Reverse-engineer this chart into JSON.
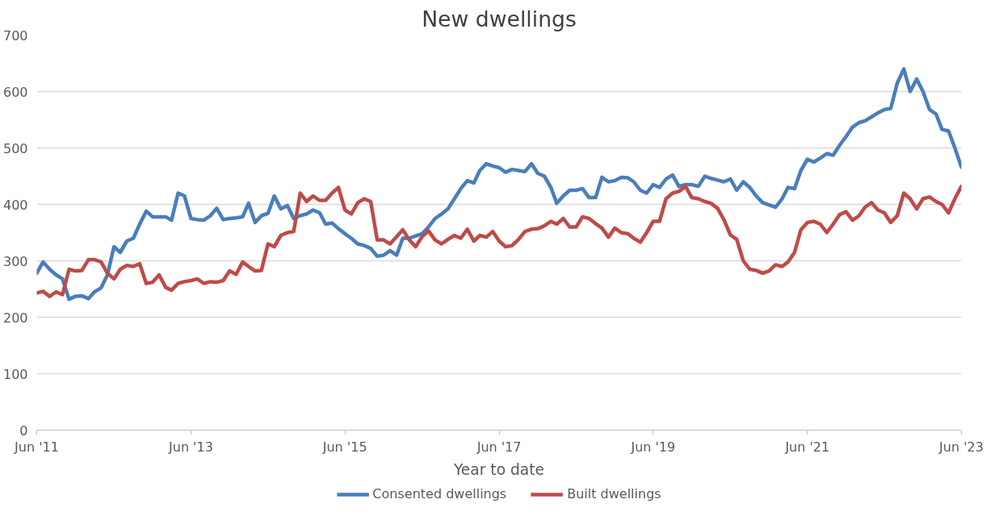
{
  "chart_data": {
    "type": "line",
    "title": "New dwellings",
    "xlabel": "Year to date",
    "xlim": [
      "2011-06",
      "2023-06"
    ],
    "xticks": [
      {
        "value": "2011-06",
        "label": "Jun '11"
      },
      {
        "value": "2013-06",
        "label": "Jun '13"
      },
      {
        "value": "2015-06",
        "label": "Jun '15"
      },
      {
        "value": "2017-06",
        "label": "Jun '17"
      },
      {
        "value": "2019-06",
        "label": "Jun '19"
      },
      {
        "value": "2021-06",
        "label": "Jun '21"
      },
      {
        "value": "2023-06",
        "label": "Jun '23"
      }
    ],
    "ylim": [
      0,
      700
    ],
    "yticks": [
      0,
      100,
      200,
      300,
      400,
      500,
      600,
      700
    ],
    "grid": "y",
    "legend": "bottom",
    "line_style": "solid",
    "x": [
      "2011-06",
      "2011-07",
      "2011-08",
      "2011-09",
      "2011-10",
      "2011-11",
      "2011-12",
      "2012-01",
      "2012-02",
      "2012-03",
      "2012-04",
      "2012-05",
      "2012-06",
      "2012-07",
      "2012-08",
      "2012-09",
      "2012-10",
      "2012-11",
      "2012-12",
      "2013-01",
      "2013-02",
      "2013-03",
      "2013-04",
      "2013-05",
      "2013-06",
      "2013-07",
      "2013-08",
      "2013-09",
      "2013-10",
      "2013-11",
      "2013-12",
      "2014-01",
      "2014-02",
      "2014-03",
      "2014-04",
      "2014-05",
      "2014-06",
      "2014-07",
      "2014-08",
      "2014-09",
      "2014-10",
      "2014-11",
      "2014-12",
      "2015-01",
      "2015-02",
      "2015-03",
      "2015-04",
      "2015-05",
      "2015-06",
      "2015-07",
      "2015-08",
      "2015-09",
      "2015-10",
      "2015-11",
      "2015-12",
      "2016-01",
      "2016-02",
      "2016-03",
      "2016-04",
      "2016-05",
      "2016-06",
      "2016-07",
      "2016-08",
      "2016-09",
      "2016-10",
      "2016-11",
      "2016-12",
      "2017-01",
      "2017-02",
      "2017-03",
      "2017-04",
      "2017-05",
      "2017-06",
      "2017-07",
      "2017-08",
      "2017-09",
      "2017-10",
      "2017-11",
      "2017-12",
      "2018-01",
      "2018-02",
      "2018-03",
      "2018-04",
      "2018-05",
      "2018-06",
      "2018-07",
      "2018-08",
      "2018-09",
      "2018-10",
      "2018-11",
      "2018-12",
      "2019-01",
      "2019-02",
      "2019-03",
      "2019-04",
      "2019-05",
      "2019-06",
      "2019-07",
      "2019-08",
      "2019-09",
      "2019-10",
      "2019-11",
      "2019-12",
      "2020-01",
      "2020-02",
      "2020-03",
      "2020-04",
      "2020-05",
      "2020-06",
      "2020-07",
      "2020-08",
      "2020-09",
      "2020-10",
      "2020-11",
      "2020-12",
      "2021-01",
      "2021-02",
      "2021-03",
      "2021-04",
      "2021-05",
      "2021-06",
      "2021-07",
      "2021-08",
      "2021-09",
      "2021-10",
      "2021-11",
      "2021-12",
      "2022-01",
      "2022-02",
      "2022-03",
      "2022-04",
      "2022-05",
      "2022-06",
      "2022-07",
      "2022-08",
      "2022-09",
      "2022-10",
      "2022-11",
      "2022-12",
      "2023-01",
      "2023-02",
      "2023-03",
      "2023-04",
      "2023-05",
      "2023-06"
    ],
    "series": [
      {
        "name": "Consented dwellings",
        "color": "#4a7ebb",
        "values": [
          278,
          298,
          285,
          275,
          268,
          232,
          237,
          238,
          233,
          245,
          252,
          275,
          325,
          315,
          335,
          340,
          365,
          388,
          378,
          378,
          378,
          372,
          420,
          415,
          375,
          373,
          372,
          380,
          393,
          373,
          375,
          376,
          378,
          402,
          368,
          380,
          384,
          415,
          392,
          398,
          375,
          380,
          383,
          390,
          385,
          365,
          367,
          357,
          348,
          340,
          330,
          327,
          322,
          308,
          310,
          318,
          310,
          340,
          340,
          344,
          348,
          360,
          375,
          383,
          392,
          410,
          428,
          442,
          438,
          460,
          472,
          468,
          465,
          457,
          462,
          460,
          458,
          472,
          455,
          450,
          430,
          402,
          415,
          425,
          425,
          428,
          412,
          412,
          448,
          440,
          442,
          448,
          447,
          440,
          425,
          420,
          435,
          430,
          445,
          452,
          432,
          435,
          435,
          432,
          450,
          446,
          443,
          440,
          445,
          425,
          440,
          430,
          415,
          403,
          399,
          395,
          410,
          430,
          428,
          460,
          480,
          475,
          482,
          490,
          487,
          505,
          520,
          537,
          545,
          548,
          555,
          562,
          568,
          570,
          615,
          640,
          600,
          622,
          600,
          568,
          560,
          533,
          530,
          500,
          466
        ]
      },
      {
        "name": "Built dwellings",
        "color": "#be4b48",
        "values": [
          243,
          246,
          237,
          245,
          240,
          285,
          282,
          283,
          302,
          302,
          298,
          278,
          268,
          285,
          292,
          290,
          295,
          260,
          262,
          275,
          253,
          248,
          260,
          263,
          265,
          268,
          260,
          263,
          262,
          265,
          282,
          276,
          298,
          290,
          282,
          283,
          330,
          325,
          345,
          350,
          352,
          420,
          405,
          415,
          407,
          407,
          420,
          430,
          390,
          383,
          403,
          410,
          405,
          337,
          337,
          330,
          343,
          355,
          337,
          325,
          343,
          353,
          337,
          330,
          338,
          345,
          340,
          356,
          335,
          345,
          342,
          352,
          335,
          325,
          327,
          338,
          352,
          356,
          357,
          362,
          370,
          365,
          375,
          360,
          360,
          378,
          375,
          366,
          358,
          342,
          358,
          350,
          348,
          340,
          333,
          350,
          370,
          370,
          410,
          420,
          423,
          432,
          412,
          410,
          405,
          402,
          393,
          373,
          346,
          338,
          300,
          285,
          283,
          278,
          282,
          293,
          290,
          298,
          315,
          355,
          368,
          370,
          365,
          350,
          365,
          382,
          387,
          372,
          380,
          395,
          403,
          390,
          385,
          368,
          380,
          420,
          410,
          392,
          410,
          413,
          405,
          400,
          385,
          410,
          432
        ]
      }
    ]
  }
}
